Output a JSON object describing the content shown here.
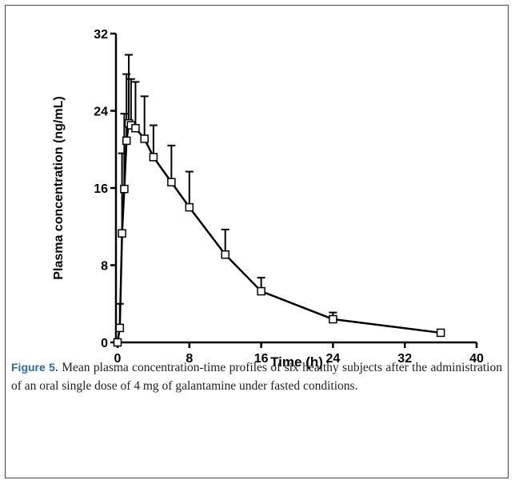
{
  "chart_data": {
    "type": "line",
    "x_label": "Time (h)",
    "y_label": "Plasma concentration (ng/mL)",
    "x": [
      0,
      0.25,
      0.5,
      0.75,
      1,
      1.25,
      1.5,
      2,
      3,
      4,
      6,
      8,
      12,
      16,
      24,
      36
    ],
    "values": [
      0,
      1.5,
      11.3,
      15.9,
      20.9,
      22.7,
      22.5,
      22.2,
      21.1,
      19.2,
      16.6,
      14.0,
      9.1,
      5.3,
      2.4,
      1.0
    ],
    "errors": [
      null,
      2.5,
      8.3,
      7.8,
      6.9,
      7.1,
      4.8,
      4.8,
      4.4,
      3.3,
      3.8,
      3.7,
      2.6,
      1.4,
      0.7,
      null
    ],
    "color": "#000000",
    "xlim": [
      0,
      40
    ],
    "xticks": [
      0,
      8,
      16,
      24,
      32,
      40
    ],
    "ylim": [
      0,
      32
    ],
    "yticks": [
      0,
      8,
      16,
      24,
      32
    ],
    "caption_label": "Figure 5.",
    "caption": "Mean plasma concentration-time profiles of six healthy subjects after the administration of an oral single dose of 4 mg of galantamine under fasted conditions."
  }
}
